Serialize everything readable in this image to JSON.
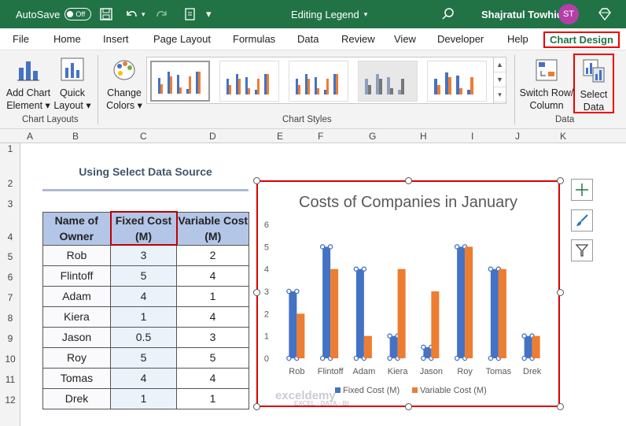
{
  "titlebar": {
    "autosave_label": "AutoSave",
    "autosave_state": "Off",
    "doc_title": "Editing Legend",
    "user_name": "Shajratul Towhid",
    "user_initials": "ST"
  },
  "tabs": [
    "File",
    "Home",
    "Insert",
    "Page Layout",
    "Formulas",
    "Data",
    "Review",
    "View",
    "Developer",
    "Help",
    "Chart Design"
  ],
  "ribbon": {
    "add_chart_element": [
      "Add Chart",
      "Element"
    ],
    "quick_layout": [
      "Quick",
      "Layout"
    ],
    "change_colors": [
      "Change",
      "Colors"
    ],
    "switch_row_col": [
      "Switch Row/",
      "Column"
    ],
    "select_data": [
      "Select",
      "Data"
    ],
    "group_chart_layouts": "Chart Layouts",
    "group_chart_styles": "Chart Styles",
    "group_data": "Data"
  },
  "columns": [
    "A",
    "B",
    "C",
    "D",
    "E",
    "F",
    "G",
    "H",
    "I",
    "J",
    "K"
  ],
  "rows": [
    "1",
    "2",
    "3",
    "4",
    "5",
    "6",
    "7",
    "8",
    "9",
    "10",
    "11",
    "12"
  ],
  "sheet": {
    "title": "Using Select Data Source",
    "headers": [
      "Name of Owner",
      "Fixed Cost (M)",
      "Variable Cost (M)"
    ],
    "rows": [
      [
        "Rob",
        "3",
        "2"
      ],
      [
        "Flintoff",
        "5",
        "4"
      ],
      [
        "Adam",
        "4",
        "1"
      ],
      [
        "Kiera",
        "1",
        "4"
      ],
      [
        "Jason",
        "0.5",
        "3"
      ],
      [
        "Roy",
        "5",
        "5"
      ],
      [
        "Tomas",
        "4",
        "4"
      ],
      [
        "Drek",
        "1",
        "1"
      ]
    ]
  },
  "chart_data": {
    "type": "bar",
    "title": "Costs of Companies in January",
    "categories": [
      "Rob",
      "Flintoff",
      "Adam",
      "Kiera",
      "Jason",
      "Roy",
      "Tomas",
      "Drek"
    ],
    "series": [
      {
        "name": "Fixed Cost (M)",
        "values": [
          3,
          5,
          4,
          1,
          0.5,
          5,
          4,
          1
        ],
        "color": "#4472c4"
      },
      {
        "name": "Variable Cost (M)",
        "values": [
          2,
          4,
          1,
          4,
          3,
          5,
          4,
          1
        ],
        "color": "#ed7d31"
      }
    ],
    "ylim": [
      0,
      6
    ],
    "yticks": [
      "0",
      "1",
      "2",
      "3",
      "4",
      "5",
      "6"
    ],
    "legend": "bottom",
    "grid": false
  },
  "watermark": {
    "name": "exceldemy",
    "tagline": "EXCEL · DATA · BI"
  },
  "colors": {
    "brand": "#217346",
    "highlight": "#e00000"
  }
}
